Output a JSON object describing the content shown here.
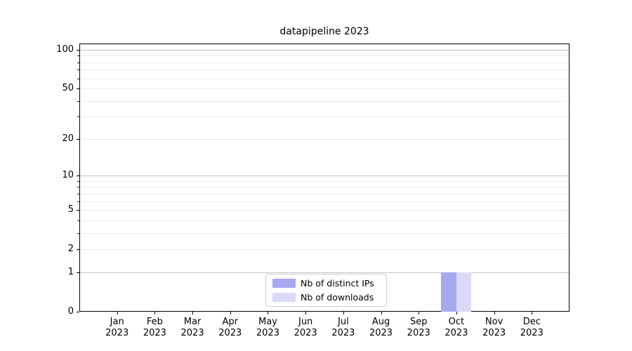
{
  "chart_data": {
    "type": "bar",
    "title": "datapipeline 2023",
    "x_axis": {
      "months": [
        "Jan",
        "Feb",
        "Mar",
        "Apr",
        "May",
        "Jun",
        "Jul",
        "Aug",
        "Sep",
        "Oct",
        "Nov",
        "Dec"
      ],
      "year": "2023"
    },
    "y_axis": {
      "scale": "log1p",
      "tick_labels": [
        "100",
        "50",
        "20",
        "10",
        "5",
        "2",
        "1",
        "0"
      ],
      "tick_values": [
        100,
        50,
        20,
        10,
        5,
        2,
        1,
        0
      ],
      "major_grid_values": [
        100,
        10,
        1
      ],
      "minor_grid_values": [
        90,
        80,
        70,
        60,
        50,
        40,
        30,
        20,
        9,
        8,
        7,
        6,
        5,
        4,
        3,
        2
      ],
      "minor_tick_values": [
        90,
        80,
        70,
        60,
        40,
        30,
        9,
        8,
        7,
        6,
        4,
        3
      ],
      "ylim": [
        0,
        113
      ]
    },
    "grid": "horizontal",
    "legend_position": "bottom-center-inside",
    "series": [
      {
        "name": "Nb of distinct IPs",
        "color": "#a8a8f0",
        "values": [
          0,
          0,
          0,
          0,
          0,
          0,
          0,
          0,
          0,
          1,
          0,
          0
        ]
      },
      {
        "name": "Nb of downloads",
        "color": "#dadaf8",
        "values": [
          0,
          0,
          0,
          0,
          0,
          0,
          0,
          0,
          0,
          1,
          0,
          0
        ]
      }
    ]
  }
}
